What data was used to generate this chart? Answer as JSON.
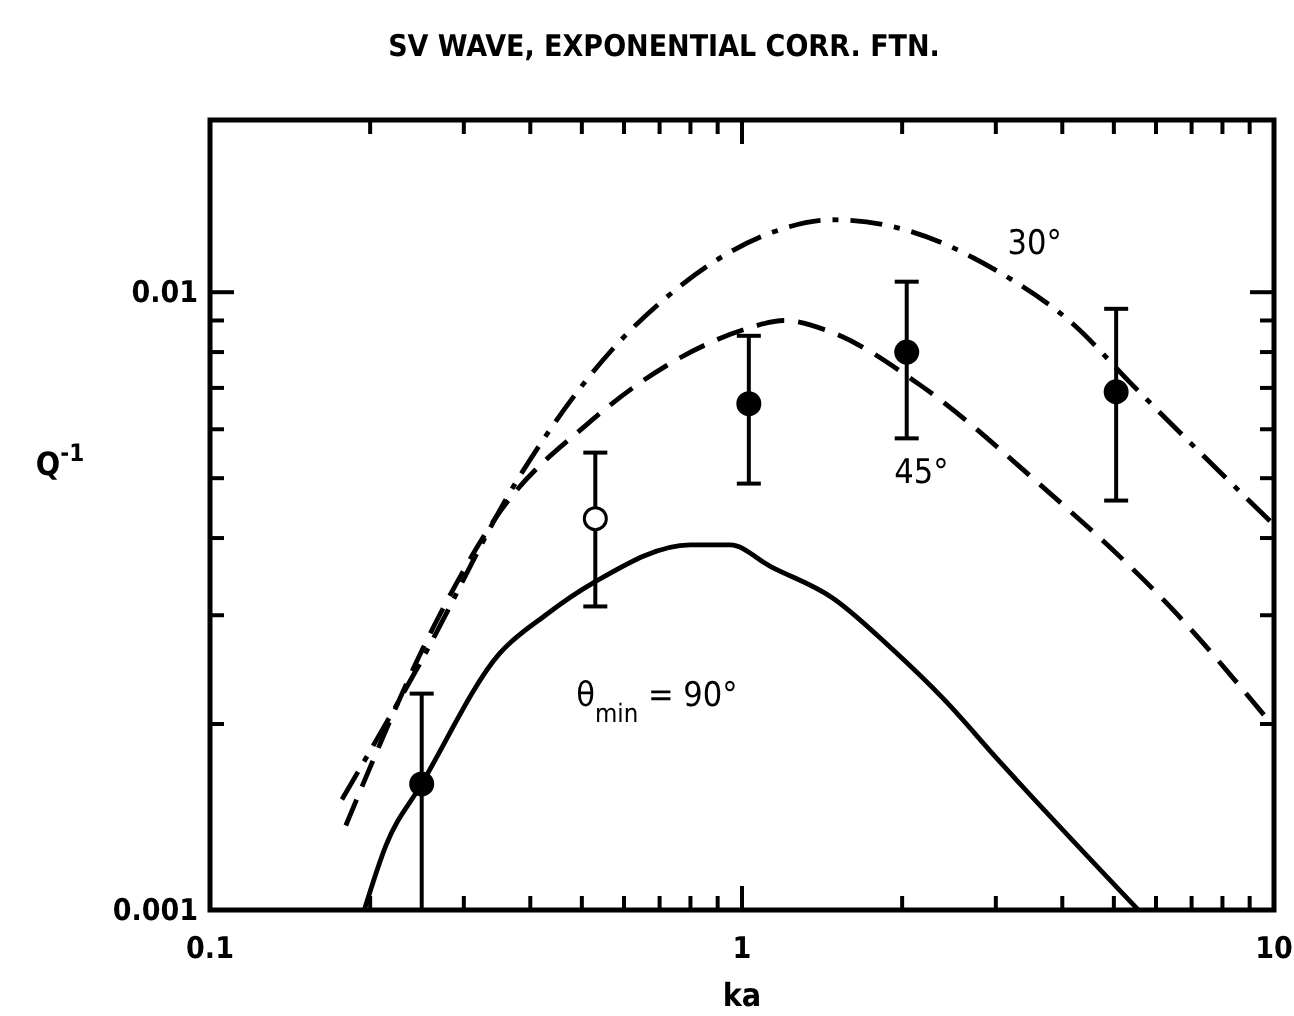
{
  "chart_data": {
    "type": "line",
    "title": "SV WAVE, EXPONENTIAL CORR. FTN.",
    "xlabel": "ka",
    "ylabel": "Q$^{-1}$",
    "log": "xy",
    "grid": false,
    "xlim": [
      0.1,
      10
    ],
    "ylim": [
      0.001,
      0.019
    ],
    "xticks": [
      0.1,
      {
        "value": 0.2,
        "label": null
      },
      {
        "value": 0.3,
        "label": null
      },
      {
        "value": 0.4,
        "label": null
      },
      {
        "value": 0.5,
        "label": null
      },
      {
        "value": 0.6,
        "label": null
      },
      {
        "value": 0.7,
        "label": null
      },
      {
        "value": 0.8,
        "label": null
      },
      {
        "value": 0.9,
        "label": null
      },
      1,
      {
        "value": 2,
        "label": null
      },
      {
        "value": 3,
        "label": null
      },
      {
        "value": 4,
        "label": null
      },
      {
        "value": 5,
        "label": null
      },
      {
        "value": 6,
        "label": null
      },
      {
        "value": 7,
        "label": null
      },
      {
        "value": 8,
        "label": null
      },
      {
        "value": 9,
        "label": null
      },
      10
    ],
    "yticks": [
      0.001,
      {
        "value": 0.002,
        "label": null
      },
      {
        "value": 0.003,
        "label": null
      },
      {
        "value": 0.004,
        "label": null
      },
      {
        "value": 0.005,
        "label": null
      },
      {
        "value": 0.006,
        "label": null
      },
      {
        "value": 0.007,
        "label": null
      },
      {
        "value": 0.008,
        "label": null
      },
      {
        "value": 0.009,
        "label": null
      },
      0.01
    ],
    "series": [
      {
        "name": "30°",
        "color": "#000000",
        "line_style": "dashdot",
        "x": [
          0.177,
          0.247,
          0.38,
          0.572,
          0.72,
          1.14,
          1.48,
          1.97,
          3.03,
          4.18,
          5.4,
          10
        ],
        "values": [
          0.00151,
          0.00249,
          0.005,
          0.0081,
          0.0098,
          0.0125,
          0.0131,
          0.0127,
          0.0108,
          0.0089,
          0.0071,
          0.0042
        ]
      },
      {
        "name": "45°",
        "color": "#000000",
        "line_style": "dashed",
        "x": [
          0.18,
          0.27,
          0.35,
          0.51,
          0.72,
          1.01,
          1.2,
          1.48,
          2.15,
          3.52,
          6.6,
          9.75
        ],
        "values": [
          0.00137,
          0.003,
          0.0044,
          0.0061,
          0.0076,
          0.0087,
          0.009,
          0.0086,
          0.0071,
          0.005,
          0.003,
          0.00203
        ]
      },
      {
        "name": "θ$_{min}$ = 90°",
        "color": "#000000",
        "line_style": "solid",
        "x": [
          0.195,
          0.214,
          0.25,
          0.35,
          0.427,
          0.53,
          0.8,
          0.95,
          1.13,
          1.48,
          1.92,
          2.4,
          3.03,
          5.56
        ],
        "values": [
          0.001,
          0.00127,
          0.0016,
          0.0026,
          0.003,
          0.0034,
          0.0039,
          0.0039,
          0.0036,
          0.0032,
          0.00264,
          0.00219,
          0.00175,
          0.001
        ]
      },
      {
        "type": "scatter",
        "color": "#000000",
        "marker": "circle",
        "x": [
          0.25,
          1.03,
          2.04,
          5.05
        ],
        "values": [
          0.0016,
          0.0066,
          0.008,
          0.0069
        ],
        "errors": [
          [
            0.001,
            0.00224
          ],
          [
            0.0049,
            0.0085
          ],
          [
            0.0058,
            0.0104
          ],
          [
            0.0046,
            0.0094
          ]
        ]
      },
      {
        "type": "scatter",
        "color": "#ffffff",
        "marker": "circle",
        "x": [
          0.53
        ],
        "values": [
          0.0043
        ],
        "errors": [
          [
            0.0031,
            0.0055
          ]
        ]
      }
    ]
  }
}
